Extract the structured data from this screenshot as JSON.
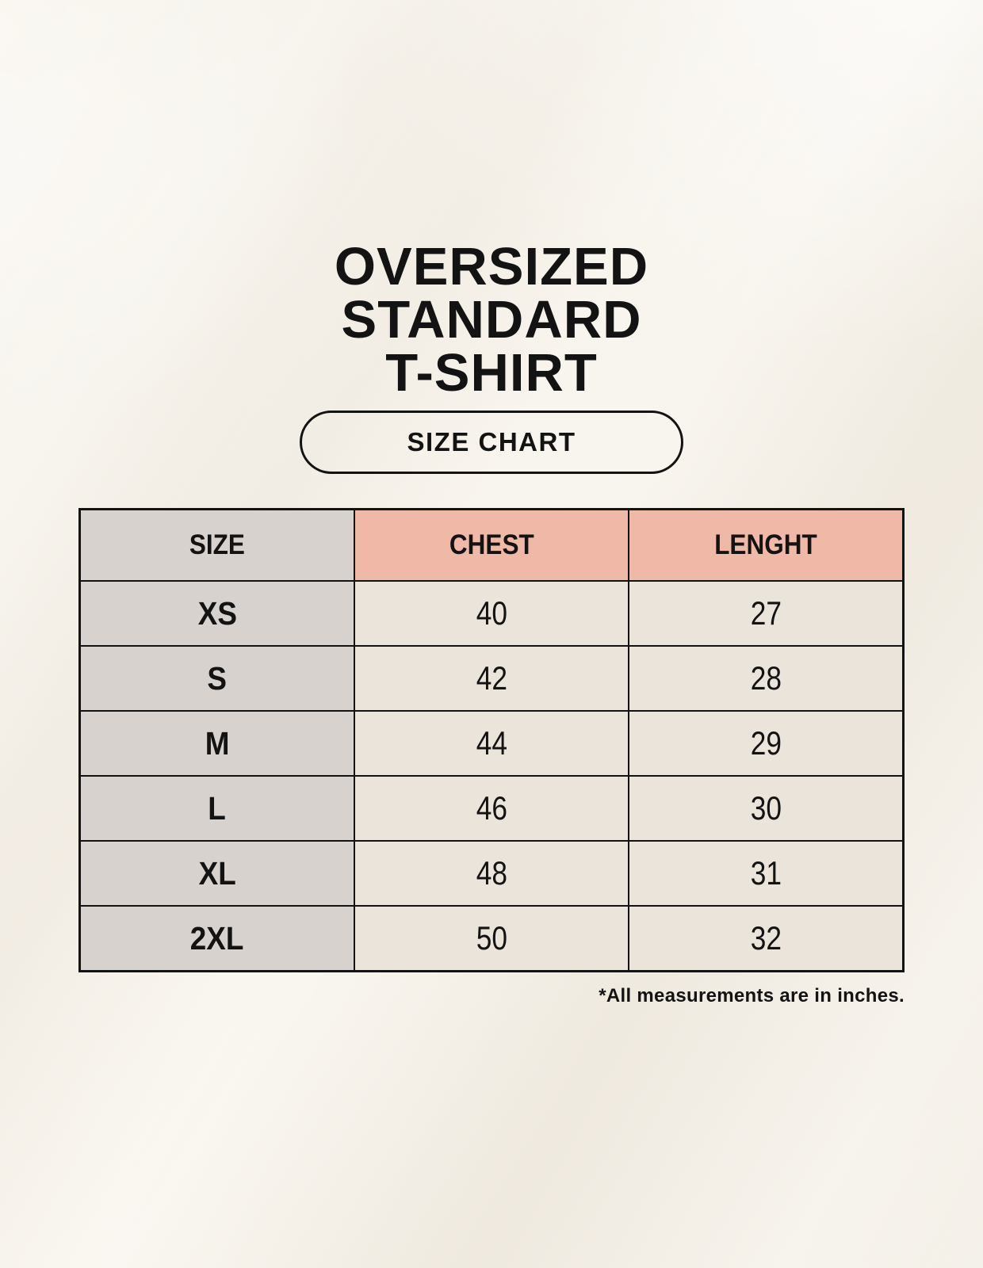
{
  "title": {
    "lines": [
      "OVERSIZED",
      "STANDARD",
      "T-SHIRT"
    ]
  },
  "badge": {
    "label": "SIZE CHART"
  },
  "chart_data": {
    "type": "table",
    "title": "OVERSIZED STANDARD T-SHIRT",
    "subtitle": "SIZE CHART",
    "columns": [
      "SIZE",
      "CHEST",
      "LENGHT"
    ],
    "rows": [
      [
        "XS",
        "40",
        "27"
      ],
      [
        "S",
        "42",
        "28"
      ],
      [
        "M",
        "44",
        "29"
      ],
      [
        "L",
        "46",
        "30"
      ],
      [
        "XL",
        "48",
        "31"
      ],
      [
        "2XL",
        "50",
        "32"
      ]
    ],
    "units": "inches",
    "note": "*All measurements are in inches."
  },
  "footnote": {
    "text": "*All measurements are in inches."
  },
  "colors": {
    "background": "#f7f3ec",
    "size_bg": "#d8d2cf",
    "measure_bg": "#f0b8a6",
    "value_bg": "#ebe4db",
    "border": "#131313",
    "text": "#131313"
  }
}
